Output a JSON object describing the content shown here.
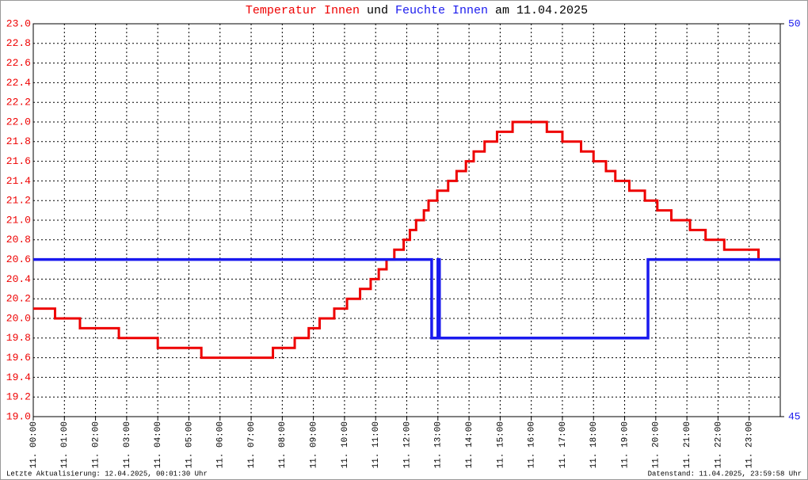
{
  "chart_data": {
    "type": "line",
    "line_style": "step",
    "title": {
      "connector": "und",
      "suffix": "am 11.04.2025"
    },
    "footer_left": "Letzte Aktualisierung: 12.04.2025, 00:01:30 Uhr",
    "footer_right": "Datenstand: 11.04.2025, 23:59:58 Uhr",
    "xlim": [
      0,
      24
    ],
    "xticks": [
      {
        "value": 0,
        "label": "11. 00:00"
      },
      {
        "value": 1,
        "label": "11. 01:00"
      },
      {
        "value": 2,
        "label": "11. 02:00"
      },
      {
        "value": 3,
        "label": "11. 03:00"
      },
      {
        "value": 4,
        "label": "11. 04:00"
      },
      {
        "value": 5,
        "label": "11. 05:00"
      },
      {
        "value": 6,
        "label": "11. 06:00"
      },
      {
        "value": 7,
        "label": "11. 07:00"
      },
      {
        "value": 8,
        "label": "11. 08:00"
      },
      {
        "value": 9,
        "label": "11. 09:00"
      },
      {
        "value": 10,
        "label": "11. 10:00"
      },
      {
        "value": 11,
        "label": "11. 11:00"
      },
      {
        "value": 12,
        "label": "11. 12:00"
      },
      {
        "value": 13,
        "label": "11. 13:00"
      },
      {
        "value": 14,
        "label": "11. 14:00"
      },
      {
        "value": 15,
        "label": "11. 15:00"
      },
      {
        "value": 16,
        "label": "11. 16:00"
      },
      {
        "value": 17,
        "label": "11. 17:00"
      },
      {
        "value": 18,
        "label": "11. 18:00"
      },
      {
        "value": 19,
        "label": "11. 19:00"
      },
      {
        "value": 20,
        "label": "11. 20:00"
      },
      {
        "value": 21,
        "label": "11. 21:00"
      },
      {
        "value": 22,
        "label": "11. 22:00"
      },
      {
        "value": 23,
        "label": "11. 23:00"
      }
    ],
    "ylim": [
      19,
      23
    ],
    "yticks": [
      {
        "value": 19,
        "label": "19.0"
      },
      19.2,
      19.4,
      19.6,
      19.8,
      {
        "value": 20,
        "label": "20.0"
      },
      20.2,
      20.4,
      20.6,
      20.8,
      {
        "value": 21,
        "label": "21.0"
      },
      21.2,
      21.4,
      21.6,
      21.8,
      {
        "value": 22,
        "label": "22.0"
      },
      22.2,
      22.4,
      22.6,
      22.8,
      {
        "value": 23,
        "label": "23.0"
      }
    ],
    "y2lim": [
      45,
      50
    ],
    "y2ticks": [
      45,
      50
    ],
    "grid": true,
    "series": [
      {
        "name": "Temperatur Innen",
        "color": "#ee0000",
        "x": [
          0,
          0.7,
          1.5,
          2.75,
          4.0,
          5.4,
          7.7,
          8.4,
          8.85,
          9.2,
          9.67,
          10.08,
          10.5,
          10.84,
          11.1,
          11.35,
          11.6,
          11.9,
          12.1,
          12.3,
          12.55,
          12.7,
          12.98,
          13.33,
          13.6,
          13.9,
          14.15,
          14.5,
          14.9,
          15.4,
          16.5,
          17.0,
          17.6,
          18.0,
          18.4,
          18.7,
          19.15,
          19.65,
          20.05,
          20.5,
          21.1,
          21.6,
          22.2,
          23.3,
          24
        ],
        "values": [
          20.1,
          20.0,
          19.9,
          19.8,
          19.7,
          19.6,
          19.7,
          19.8,
          19.9,
          20.0,
          20.1,
          20.2,
          20.3,
          20.4,
          20.5,
          20.6,
          20.7,
          20.8,
          20.9,
          21.0,
          21.1,
          21.2,
          21.3,
          21.4,
          21.5,
          21.6,
          21.7,
          21.8,
          21.9,
          22.0,
          21.9,
          21.8,
          21.7,
          21.6,
          21.5,
          21.4,
          21.3,
          21.2,
          21.1,
          21.0,
          20.9,
          20.8,
          20.7,
          20.6,
          20.6
        ]
      },
      {
        "name": "Feuchte Innen",
        "color": "#1a1aee",
        "axis": "y2",
        "x": [
          0,
          12.8,
          13.0,
          13.05,
          19.75,
          24
        ],
        "values": [
          47,
          46,
          47,
          46,
          47,
          47
        ]
      }
    ]
  }
}
